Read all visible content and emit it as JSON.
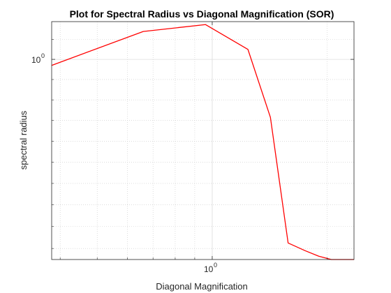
{
  "chart_data": {
    "type": "line",
    "title": "Plot for Spectral Radius vs Diagonal Magnification (SOR)",
    "xlabel": "Diagonal Magnification",
    "ylabel": "spectral radius",
    "xscale": "log",
    "yscale": "log",
    "xlim": [
      0.38,
      2.35
    ],
    "ylim": [
      0.905,
      1.019
    ],
    "grid": true,
    "minor_grid": true,
    "legend": "none",
    "colors": {
      "line": "#ff0000",
      "axes": "#262626",
      "grid_major": "#dcdcdc",
      "grid_minor": "#c8c8c8"
    },
    "x_ticks": [
      {
        "value": 1.0,
        "base": "10",
        "exponent": "0"
      }
    ],
    "y_ticks": [
      {
        "value": 1.0,
        "base": "10",
        "exponent": "0"
      }
    ],
    "series": [
      {
        "x": [
          0.38,
          0.66,
          0.96,
          1.24,
          1.42,
          1.58,
          1.75,
          1.9,
          2.05,
          2.2,
          2.35
        ],
        "y": [
          0.997,
          1.014,
          1.0175,
          1.005,
          0.9715,
          0.9125,
          0.909,
          0.9065,
          0.905,
          0.905,
          0.905
        ]
      }
    ]
  }
}
